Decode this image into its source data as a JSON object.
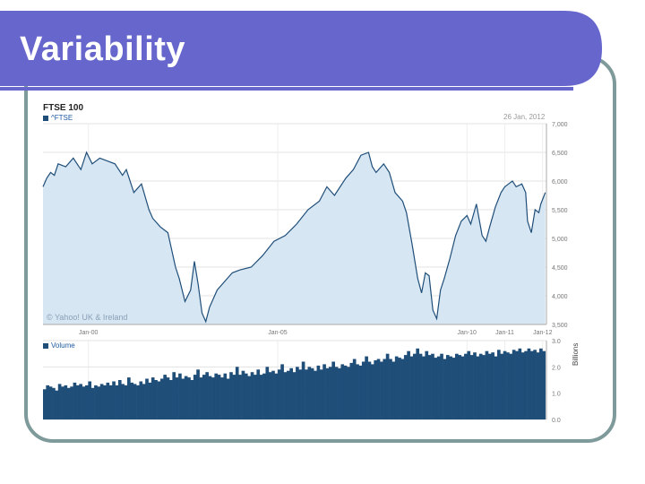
{
  "slide": {
    "title": "Variability"
  },
  "chart_data": [
    {
      "type": "area",
      "title": "FTSE 100",
      "legend": [
        "^FTSE"
      ],
      "annotation_date": "26 Jan, 2012",
      "copyright": "© Yahoo! UK & Ireland",
      "x_tick_labels": [
        "Jan-00",
        "Jan-05",
        "Jan-10",
        "Jan-11",
        "Jan-12"
      ],
      "y_tick_labels": [
        "7,000",
        "6,500",
        "6,000",
        "5,500",
        "5,000",
        "4,500",
        "4,000",
        "3,500"
      ],
      "ylim": [
        3500,
        7000
      ],
      "xlim": [
        1998.8,
        2012.1
      ],
      "grid": true,
      "series": [
        {
          "name": "^FTSE",
          "x": [
            1998.8,
            1998.9,
            1999.0,
            1999.1,
            1999.2,
            1999.4,
            1999.6,
            1999.8,
            1999.95,
            2000.1,
            2000.3,
            2000.5,
            2000.7,
            2000.9,
            2001.0,
            2001.2,
            2001.4,
            2001.6,
            2001.7,
            2001.9,
            2002.1,
            2002.3,
            2002.4,
            2002.55,
            2002.7,
            2002.8,
            2002.9,
            2003.0,
            2003.1,
            2003.2,
            2003.4,
            2003.6,
            2003.8,
            2004.0,
            2004.3,
            2004.6,
            2004.9,
            2005.2,
            2005.5,
            2005.8,
            2006.1,
            2006.3,
            2006.5,
            2006.8,
            2007.0,
            2007.2,
            2007.4,
            2007.5,
            2007.6,
            2007.8,
            2007.95,
            2008.1,
            2008.3,
            2008.4,
            2008.55,
            2008.7,
            2008.8,
            2008.9,
            2009.0,
            2009.1,
            2009.2,
            2009.3,
            2009.4,
            2009.55,
            2009.7,
            2009.85,
            2010.0,
            2010.1,
            2010.25,
            2010.4,
            2010.5,
            2010.6,
            2010.75,
            2010.9,
            2011.0,
            2011.1,
            2011.2,
            2011.3,
            2011.45,
            2011.55,
            2011.6,
            2011.7,
            2011.8,
            2011.9,
            2011.95,
            2012.07
          ],
          "values": [
            5900,
            6050,
            6150,
            6100,
            6300,
            6250,
            6400,
            6200,
            6500,
            6300,
            6400,
            6350,
            6300,
            6100,
            6200,
            5800,
            5950,
            5500,
            5350,
            5200,
            5100,
            4500,
            4300,
            3900,
            4100,
            4600,
            4200,
            3700,
            3550,
            3800,
            4100,
            4250,
            4400,
            4450,
            4500,
            4700,
            4950,
            5050,
            5250,
            5500,
            5650,
            5900,
            5750,
            6050,
            6200,
            6450,
            6500,
            6250,
            6150,
            6300,
            6150,
            5800,
            5650,
            5450,
            4900,
            4300,
            4050,
            4400,
            4350,
            3750,
            3600,
            4100,
            4300,
            4650,
            5050,
            5300,
            5400,
            5250,
            5600,
            5050,
            4950,
            5200,
            5550,
            5800,
            5900,
            5950,
            6000,
            5900,
            5950,
            5800,
            5300,
            5100,
            5500,
            5450,
            5600,
            5800
          ]
        }
      ]
    },
    {
      "type": "bar",
      "legend": [
        "Volume"
      ],
      "ylabel": "Billions",
      "y_tick_labels": [
        "3.0",
        "2.0",
        "1.0",
        "0.0"
      ],
      "ylim": [
        0,
        3
      ],
      "grid": true,
      "series": [
        {
          "name": "Volume",
          "x_start": 1998.8,
          "x_end": 2012.07,
          "values": [
            1.15,
            1.3,
            1.25,
            1.2,
            1.1,
            1.35,
            1.25,
            1.3,
            1.2,
            1.25,
            1.4,
            1.3,
            1.35,
            1.25,
            1.3,
            1.45,
            1.2,
            1.3,
            1.25,
            1.35,
            1.3,
            1.4,
            1.3,
            1.45,
            1.3,
            1.5,
            1.35,
            1.3,
            1.6,
            1.4,
            1.35,
            1.3,
            1.45,
            1.35,
            1.55,
            1.4,
            1.6,
            1.5,
            1.45,
            1.55,
            1.7,
            1.6,
            1.5,
            1.8,
            1.6,
            1.75,
            1.55,
            1.65,
            1.6,
            1.5,
            1.7,
            1.9,
            1.6,
            1.7,
            1.8,
            1.65,
            1.6,
            1.75,
            1.7,
            1.6,
            1.75,
            1.55,
            1.8,
            1.7,
            2.0,
            1.7,
            1.85,
            1.75,
            1.65,
            1.8,
            1.7,
            1.9,
            1.7,
            1.75,
            2.0,
            1.8,
            1.85,
            1.75,
            1.9,
            2.1,
            1.8,
            1.85,
            1.95,
            1.8,
            2.0,
            1.9,
            2.2,
            1.9,
            2.0,
            1.95,
            1.85,
            2.05,
            1.9,
            2.1,
            1.95,
            2.0,
            2.2,
            2.0,
            1.95,
            2.1,
            2.05,
            2.0,
            2.15,
            2.3,
            2.1,
            2.05,
            2.2,
            2.4,
            2.2,
            2.1,
            2.25,
            2.3,
            2.2,
            2.3,
            2.5,
            2.3,
            2.2,
            2.4,
            2.35,
            2.3,
            2.45,
            2.6,
            2.4,
            2.5,
            2.7,
            2.5,
            2.4,
            2.6,
            2.45,
            2.5,
            2.35,
            2.4,
            2.5,
            2.3,
            2.45,
            2.4,
            2.35,
            2.5,
            2.45,
            2.4,
            2.5,
            2.6,
            2.45,
            2.55,
            2.4,
            2.5,
            2.45,
            2.6,
            2.5,
            2.55,
            2.4,
            2.65,
            2.5,
            2.6,
            2.55,
            2.5,
            2.65,
            2.6,
            2.7,
            2.55,
            2.6,
            2.7,
            2.6,
            2.65,
            2.55,
            2.7,
            2.6
          ]
        }
      ]
    }
  ]
}
